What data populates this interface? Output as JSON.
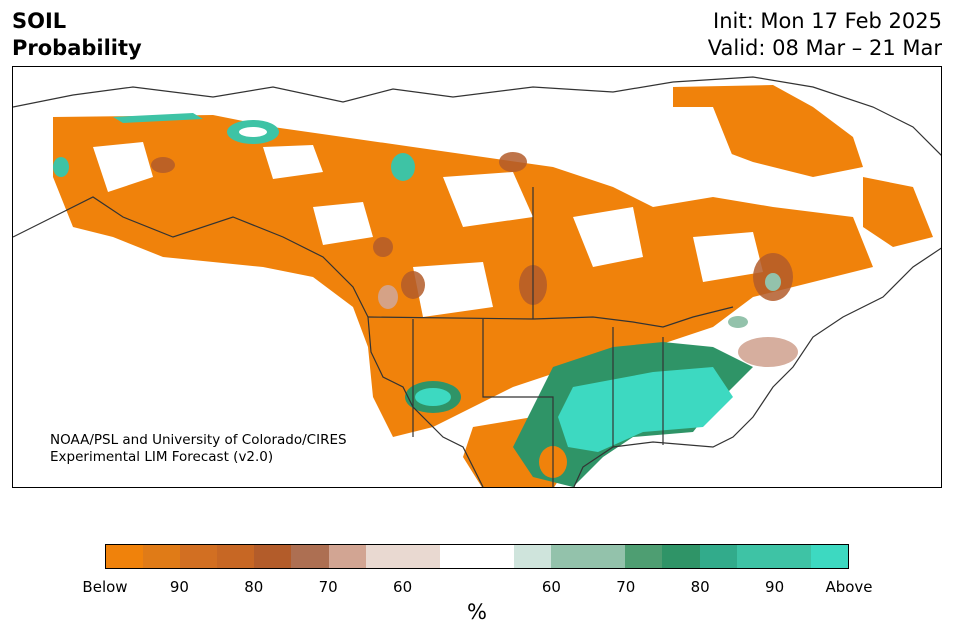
{
  "title": {
    "line1": "SOIL",
    "line2": "Probability"
  },
  "init": "Init: Mon 17 Feb 2025",
  "valid": "Valid: 08 Mar – 21 Mar",
  "credit": {
    "line1": "NOAA/PSL and University of Colorado/CIRES",
    "line2": "Experimental LIM Forecast (v2.0)"
  },
  "legend": {
    "colors": [
      "#f0820b",
      "#e07b17",
      "#d26f22",
      "#c76724",
      "#b35c2a",
      "#ad6f52",
      "#d2a593",
      "#e9d9d1",
      "#e9d9d1",
      "#ffffff",
      "#ffffff",
      "#cfe4dc",
      "#93c2ab",
      "#93c2ab",
      "#4e9e72",
      "#2f9467",
      "#32ab8b",
      "#3ec3a5",
      "#3ec3a5",
      "#3dd9c1"
    ],
    "labels": [
      "Below",
      "90",
      "80",
      "70",
      "60",
      "60",
      "70",
      "80",
      "90",
      "Above"
    ],
    "unit": "%"
  },
  "map": {
    "below_color": "#f0820b",
    "above_color": "#3dd9c1",
    "mid_above_color": "#2f9467"
  }
}
